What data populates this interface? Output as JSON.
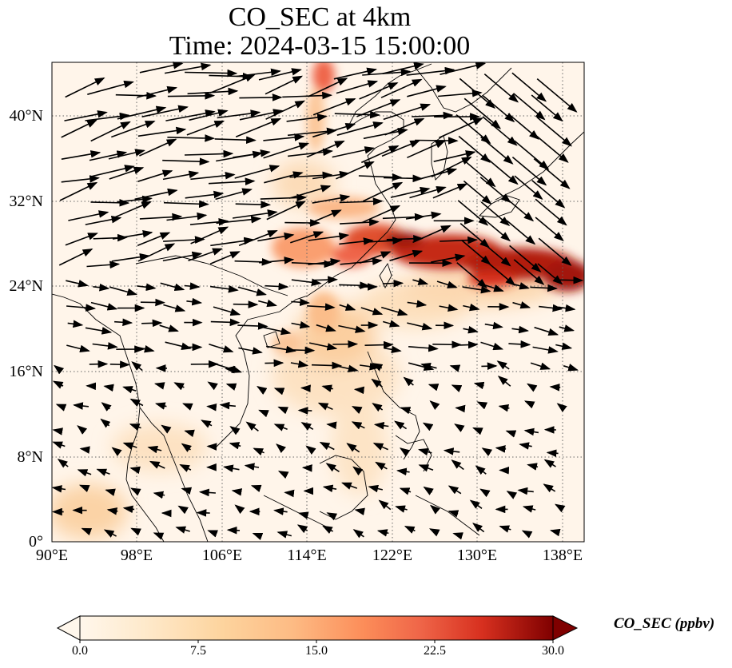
{
  "title": {
    "line1": "CO_SEC at 4km",
    "line2": "Time: 2024-03-15 15:00:00"
  },
  "map": {
    "lon_range": [
      90,
      140
    ],
    "lat_range": [
      0,
      45
    ],
    "x_ticks": [
      "90°E",
      "98°E",
      "106°E",
      "114°E",
      "122°E",
      "130°E",
      "138°E"
    ],
    "y_ticks": [
      "0°",
      "8°N",
      "16°N",
      "24°N",
      "32°N",
      "40°N"
    ],
    "gridlines": "dotted",
    "field": "CO_SEC concentration with wind vectors",
    "colormap": "OrRd",
    "colors": {
      "low": "#fff7ec",
      "mid": "#fdbb84",
      "high": "#7f0000"
    }
  },
  "colorbar": {
    "label": "CO_SEC (ppbv)",
    "ticks": [
      "0.0",
      "7.5",
      "15.0",
      "22.5",
      "30.0"
    ],
    "range": [
      0,
      30
    ],
    "extend": "both"
  }
}
